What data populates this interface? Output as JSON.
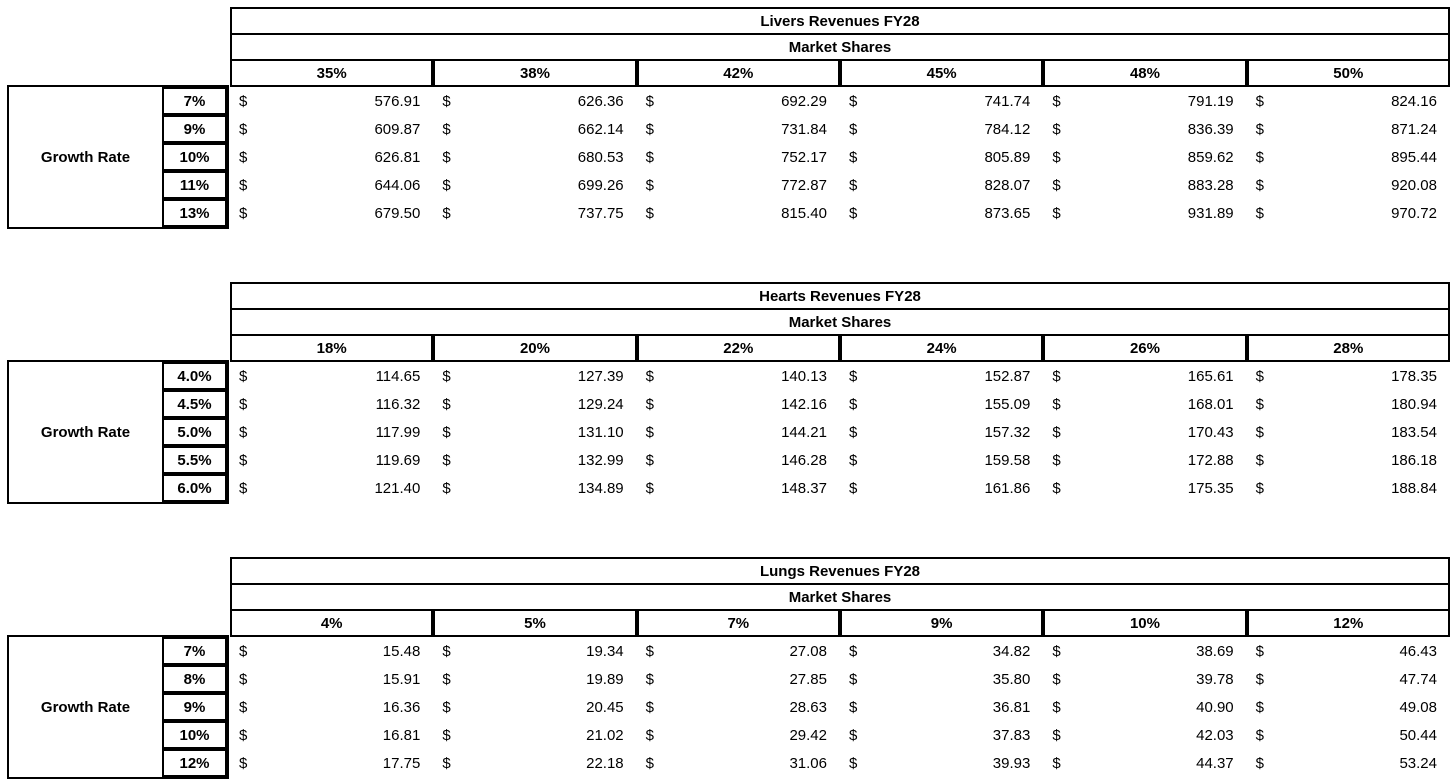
{
  "colors": {
    "border": "#000000",
    "text": "#000000",
    "background": "#ffffff"
  },
  "tables": [
    {
      "title": "Livers Revenues FY28",
      "subtitle": "Market Shares",
      "row_axis_label": "Growth Rate",
      "currency": "$",
      "col_headers": [
        "35%",
        "38%",
        "42%",
        "45%",
        "48%",
        "50%"
      ],
      "row_headers": [
        "7%",
        "9%",
        "10%",
        "11%",
        "13%"
      ],
      "rows": [
        [
          "576.91",
          "626.36",
          "692.29",
          "741.74",
          "791.19",
          "824.16"
        ],
        [
          "609.87",
          "662.14",
          "731.84",
          "784.12",
          "836.39",
          "871.24"
        ],
        [
          "626.81",
          "680.53",
          "752.17",
          "805.89",
          "859.62",
          "895.44"
        ],
        [
          "644.06",
          "699.26",
          "772.87",
          "828.07",
          "883.28",
          "920.08"
        ],
        [
          "679.50",
          "737.75",
          "815.40",
          "873.65",
          "931.89",
          "970.72"
        ]
      ]
    },
    {
      "title": "Hearts Revenues FY28",
      "subtitle": "Market Shares",
      "row_axis_label": "Growth Rate",
      "currency": "$",
      "col_headers": [
        "18%",
        "20%",
        "22%",
        "24%",
        "26%",
        "28%"
      ],
      "row_headers": [
        "4.0%",
        "4.5%",
        "5.0%",
        "5.5%",
        "6.0%"
      ],
      "rows": [
        [
          "114.65",
          "127.39",
          "140.13",
          "152.87",
          "165.61",
          "178.35"
        ],
        [
          "116.32",
          "129.24",
          "142.16",
          "155.09",
          "168.01",
          "180.94"
        ],
        [
          "117.99",
          "131.10",
          "144.21",
          "157.32",
          "170.43",
          "183.54"
        ],
        [
          "119.69",
          "132.99",
          "146.28",
          "159.58",
          "172.88",
          "186.18"
        ],
        [
          "121.40",
          "134.89",
          "148.37",
          "161.86",
          "175.35",
          "188.84"
        ]
      ]
    },
    {
      "title": "Lungs Revenues FY28",
      "subtitle": "Market Shares",
      "row_axis_label": "Growth Rate",
      "currency": "$",
      "col_headers": [
        "4%",
        "5%",
        "7%",
        "9%",
        "10%",
        "12%"
      ],
      "row_headers": [
        "7%",
        "8%",
        "9%",
        "10%",
        "12%"
      ],
      "rows": [
        [
          "15.48",
          "19.34",
          "27.08",
          "34.82",
          "38.69",
          "46.43"
        ],
        [
          "15.91",
          "19.89",
          "27.85",
          "35.80",
          "39.78",
          "47.74"
        ],
        [
          "16.36",
          "20.45",
          "28.63",
          "36.81",
          "40.90",
          "49.08"
        ],
        [
          "16.81",
          "21.02",
          "29.42",
          "37.83",
          "42.03",
          "50.44"
        ],
        [
          "17.75",
          "22.18",
          "31.06",
          "39.93",
          "44.37",
          "53.24"
        ]
      ]
    }
  ]
}
